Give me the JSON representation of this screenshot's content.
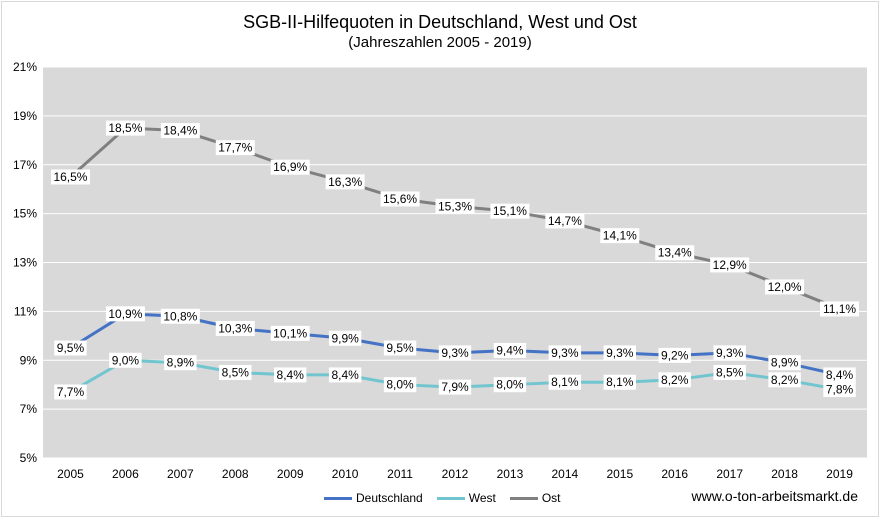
{
  "chart_data": {
    "type": "line",
    "title": "SGB-II-Hilfequoten in  Deutschland, West und Ost",
    "subtitle": "(Jahreszahlen  2005 - 2019)",
    "x": [
      "2005",
      "2006",
      "2007",
      "2008",
      "2009",
      "2010",
      "2011",
      "2012",
      "2013",
      "2014",
      "2015",
      "2016",
      "2017",
      "2018",
      "2019"
    ],
    "ylim": [
      5,
      21
    ],
    "yticks": [
      5,
      7,
      9,
      11,
      13,
      15,
      17,
      19,
      21
    ],
    "ytick_labels": [
      "5%",
      "7%",
      "9%",
      "11%",
      "13%",
      "15%",
      "17%",
      "19%",
      "21%"
    ],
    "grid": true,
    "legend_position": "bottom",
    "series": [
      {
        "name": "Deutschland",
        "color": "#4472c4",
        "values": [
          9.5,
          10.9,
          10.8,
          10.3,
          10.1,
          9.9,
          9.5,
          9.3,
          9.4,
          9.3,
          9.3,
          9.2,
          9.3,
          8.9,
          8.4
        ],
        "labels": [
          "9,5%",
          "10,9%",
          "10,8%",
          "10,3%",
          "10,1%",
          "9,9%",
          "9,5%",
          "9,3%",
          "9,4%",
          "9,3%",
          "9,3%",
          "9,2%",
          "9,3%",
          "8,9%",
          "8,4%"
        ]
      },
      {
        "name": "West",
        "color": "#70c5cf",
        "values": [
          7.7,
          9.0,
          8.9,
          8.5,
          8.4,
          8.4,
          8.0,
          7.9,
          8.0,
          8.1,
          8.1,
          8.2,
          8.5,
          8.2,
          7.8
        ],
        "labels": [
          "7,7%",
          "9,0%",
          "8,9%",
          "8,5%",
          "8,4%",
          "8,4%",
          "8,0%",
          "7,9%",
          "8,0%",
          "8,1%",
          "8,1%",
          "8,2%",
          "8,5%",
          "8,2%",
          "7,8%"
        ]
      },
      {
        "name": "Ost",
        "color": "#808080",
        "values": [
          16.5,
          18.5,
          18.4,
          17.7,
          16.9,
          16.3,
          15.6,
          15.3,
          15.1,
          14.7,
          14.1,
          13.4,
          12.9,
          12.0,
          11.1
        ],
        "labels": [
          "16,5%",
          "18,5%",
          "18,4%",
          "17,7%",
          "16,9%",
          "16,3%",
          "15,6%",
          "15,3%",
          "15,1%",
          "14,7%",
          "14,1%",
          "13,4%",
          "12,9%",
          "12,0%",
          "11,1%"
        ]
      }
    ],
    "plot_background": "#d9d9d9"
  },
  "source_text": "www.o-ton-arbeitsmarkt.de"
}
